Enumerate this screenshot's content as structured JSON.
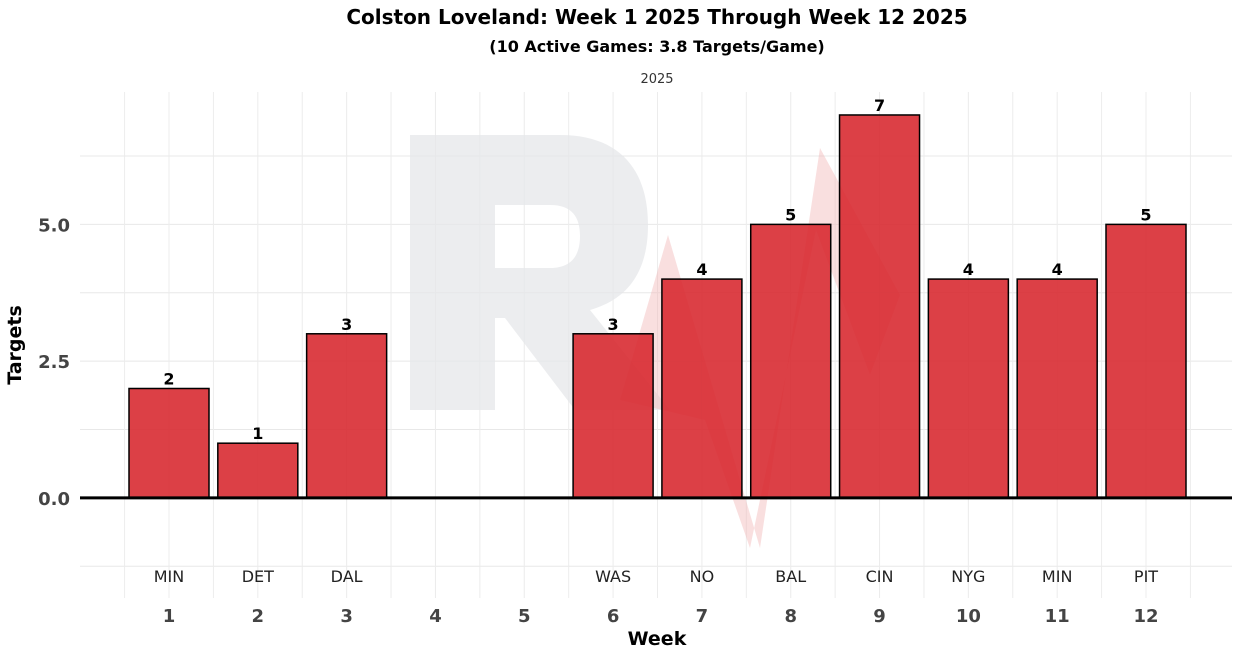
{
  "chart_data": {
    "type": "bar",
    "title": "Colston Loveland: Week 1 2025 Through Week 12 2025",
    "subtitle": "(10 Active Games: 3.8 Targets/Game)",
    "facet_label": "2025",
    "xlabel": "Week",
    "ylabel": "Targets",
    "categories": [
      "1",
      "2",
      "3",
      "4",
      "5",
      "6",
      "7",
      "8",
      "9",
      "10",
      "11",
      "12"
    ],
    "opponents": [
      "MIN",
      "DET",
      "DAL",
      "",
      "",
      "WAS",
      "NO",
      "BAL",
      "CIN",
      "NYG",
      "MIN",
      "PIT"
    ],
    "values": [
      2,
      1,
      3,
      null,
      null,
      3,
      4,
      5,
      7,
      4,
      4,
      5
    ],
    "ylim": [
      -1.83,
      7.42
    ],
    "yticks": [
      0.0,
      2.5,
      5.0
    ],
    "ytick_labels": [
      "0.0",
      "2.5",
      "5.0"
    ],
    "grid": true,
    "bar_color": "#d7262c",
    "watermark_letter": "R"
  }
}
